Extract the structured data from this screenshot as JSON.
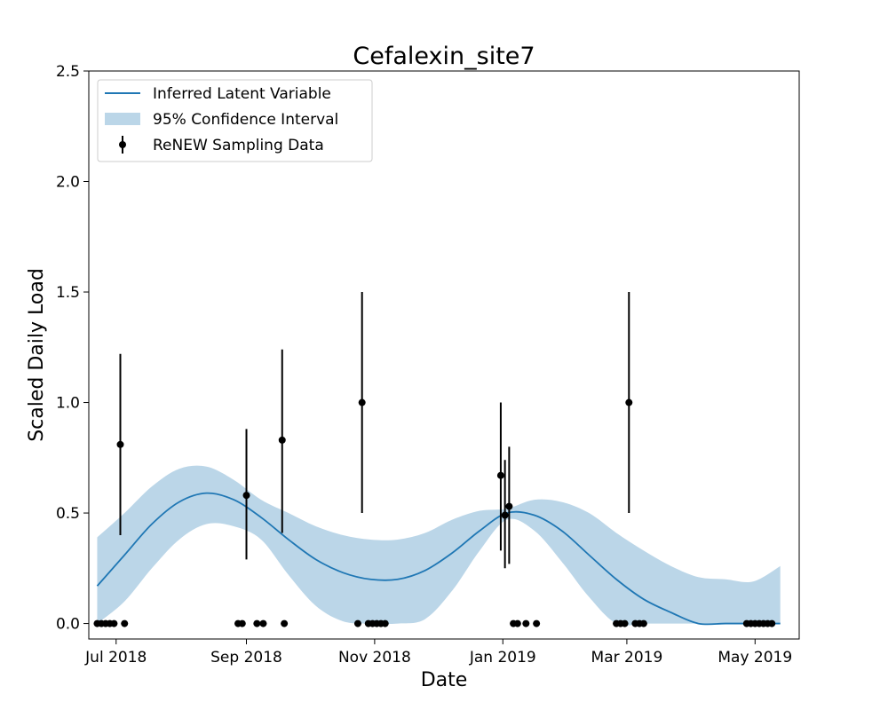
{
  "chart_data": {
    "type": "line",
    "title": "Cefalexin_site7",
    "xlabel": "Date",
    "ylabel": "Scaled Daily Load",
    "x_axis_type": "date",
    "xlim": [
      "2018-06-18",
      "2019-05-22"
    ],
    "ylim": [
      -0.07,
      2.5
    ],
    "xticks": [
      {
        "date": "2018-07-01",
        "label": "Jul 2018"
      },
      {
        "date": "2018-09-01",
        "label": "Sep 2018"
      },
      {
        "date": "2018-11-01",
        "label": "Nov 2018"
      },
      {
        "date": "2019-01-01",
        "label": "Jan 2019"
      },
      {
        "date": "2019-03-01",
        "label": "Mar 2019"
      },
      {
        "date": "2019-05-01",
        "label": "May 2019"
      }
    ],
    "yticks": [
      0.0,
      0.5,
      1.0,
      1.5,
      2.0,
      2.5
    ],
    "ytick_labels": [
      "0.0",
      "0.5",
      "1.0",
      "1.5",
      "2.0",
      "2.5"
    ],
    "grid": false,
    "legend_position": "upper-left",
    "colors": {
      "line": "#1f77b4",
      "band": "#1f77b4",
      "points": "#000000"
    },
    "legend": [
      {
        "label": "Inferred Latent Variable",
        "kind": "line"
      },
      {
        "label": "95% Confidence Interval",
        "kind": "band"
      },
      {
        "label": "ReNEW Sampling Data",
        "kind": "errorbar"
      }
    ],
    "series": [
      {
        "name": "Inferred Latent Variable",
        "kind": "line",
        "x": [
          "2018-06-22",
          "2018-07-05",
          "2018-07-18",
          "2018-07-31",
          "2018-08-13",
          "2018-08-26",
          "2018-09-08",
          "2018-09-21",
          "2018-10-04",
          "2018-10-17",
          "2018-10-30",
          "2018-11-12",
          "2018-11-25",
          "2018-12-08",
          "2018-12-21",
          "2019-01-03",
          "2019-01-16",
          "2019-01-29",
          "2019-02-11",
          "2019-02-24",
          "2019-03-09",
          "2019-03-22",
          "2019-04-04",
          "2019-04-17",
          "2019-04-30",
          "2019-05-13"
        ],
        "y": [
          0.17,
          0.31,
          0.45,
          0.55,
          0.59,
          0.56,
          0.48,
          0.38,
          0.29,
          0.23,
          0.2,
          0.2,
          0.24,
          0.32,
          0.42,
          0.5,
          0.49,
          0.42,
          0.31,
          0.2,
          0.11,
          0.05,
          0.0,
          0.0,
          0.0,
          0.0
        ]
      },
      {
        "name": "95% Confidence Interval",
        "kind": "band",
        "x": [
          "2018-06-22",
          "2018-07-05",
          "2018-07-18",
          "2018-07-31",
          "2018-08-13",
          "2018-08-26",
          "2018-09-08",
          "2018-09-21",
          "2018-10-04",
          "2018-10-17",
          "2018-10-30",
          "2018-11-12",
          "2018-11-25",
          "2018-12-08",
          "2018-12-21",
          "2019-01-03",
          "2019-01-16",
          "2019-01-29",
          "2019-02-11",
          "2019-02-24",
          "2019-03-09",
          "2019-03-22",
          "2019-04-04",
          "2019-04-17",
          "2019-04-30",
          "2019-05-13"
        ],
        "lower": [
          0.0,
          0.1,
          0.25,
          0.38,
          0.45,
          0.44,
          0.38,
          0.22,
          0.08,
          0.01,
          0.0,
          0.0,
          0.02,
          0.15,
          0.33,
          0.47,
          0.42,
          0.28,
          0.12,
          0.0,
          0.0,
          0.0,
          0.0,
          0.0,
          0.0,
          0.0
        ],
        "upper": [
          0.39,
          0.5,
          0.62,
          0.7,
          0.71,
          0.65,
          0.56,
          0.5,
          0.44,
          0.4,
          0.38,
          0.38,
          0.41,
          0.47,
          0.51,
          0.52,
          0.56,
          0.55,
          0.5,
          0.41,
          0.33,
          0.26,
          0.21,
          0.2,
          0.19,
          0.26
        ]
      },
      {
        "name": "ReNEW Sampling Data",
        "kind": "errorbar",
        "points": [
          {
            "x": "2018-06-22",
            "y": 0.0
          },
          {
            "x": "2018-06-24",
            "y": 0.0
          },
          {
            "x": "2018-06-26",
            "y": 0.0
          },
          {
            "x": "2018-06-28",
            "y": 0.0
          },
          {
            "x": "2018-06-30",
            "y": 0.0
          },
          {
            "x": "2018-07-03",
            "y": 0.81,
            "low": 0.4,
            "high": 1.22
          },
          {
            "x": "2018-07-05",
            "y": 0.0
          },
          {
            "x": "2018-08-28",
            "y": 0.0
          },
          {
            "x": "2018-08-30",
            "y": 0.0
          },
          {
            "x": "2018-09-01",
            "y": 0.58,
            "low": 0.29,
            "high": 0.88
          },
          {
            "x": "2018-09-06",
            "y": 0.0
          },
          {
            "x": "2018-09-09",
            "y": 0.0
          },
          {
            "x": "2018-09-18",
            "y": 0.83,
            "low": 0.41,
            "high": 1.24
          },
          {
            "x": "2018-09-19",
            "y": 0.0
          },
          {
            "x": "2018-10-24",
            "y": 0.0
          },
          {
            "x": "2018-10-26",
            "y": 1.0,
            "low": 0.5,
            "high": 1.5
          },
          {
            "x": "2018-10-29",
            "y": 0.0
          },
          {
            "x": "2018-10-31",
            "y": 0.0
          },
          {
            "x": "2018-11-02",
            "y": 0.0
          },
          {
            "x": "2018-11-04",
            "y": 0.0
          },
          {
            "x": "2018-11-06",
            "y": 0.0
          },
          {
            "x": "2018-12-31",
            "y": 0.67,
            "low": 0.33,
            "high": 1.0
          },
          {
            "x": "2019-01-02",
            "y": 0.49,
            "low": 0.25,
            "high": 0.74
          },
          {
            "x": "2019-01-04",
            "y": 0.53,
            "low": 0.27,
            "high": 0.8
          },
          {
            "x": "2019-01-06",
            "y": 0.0
          },
          {
            "x": "2019-01-08",
            "y": 0.0
          },
          {
            "x": "2019-01-12",
            "y": 0.0
          },
          {
            "x": "2019-01-17",
            "y": 0.0
          },
          {
            "x": "2019-02-24",
            "y": 0.0
          },
          {
            "x": "2019-02-26",
            "y": 0.0
          },
          {
            "x": "2019-02-28",
            "y": 0.0
          },
          {
            "x": "2019-03-02",
            "y": 1.0,
            "low": 0.5,
            "high": 1.5
          },
          {
            "x": "2019-03-05",
            "y": 0.0
          },
          {
            "x": "2019-03-07",
            "y": 0.0
          },
          {
            "x": "2019-03-09",
            "y": 0.0
          },
          {
            "x": "2019-04-27",
            "y": 0.0
          },
          {
            "x": "2019-04-29",
            "y": 0.0
          },
          {
            "x": "2019-05-01",
            "y": 0.0
          },
          {
            "x": "2019-05-03",
            "y": 0.0
          },
          {
            "x": "2019-05-05",
            "y": 0.0
          },
          {
            "x": "2019-05-07",
            "y": 0.0
          },
          {
            "x": "2019-05-09",
            "y": 0.0
          }
        ]
      }
    ]
  }
}
